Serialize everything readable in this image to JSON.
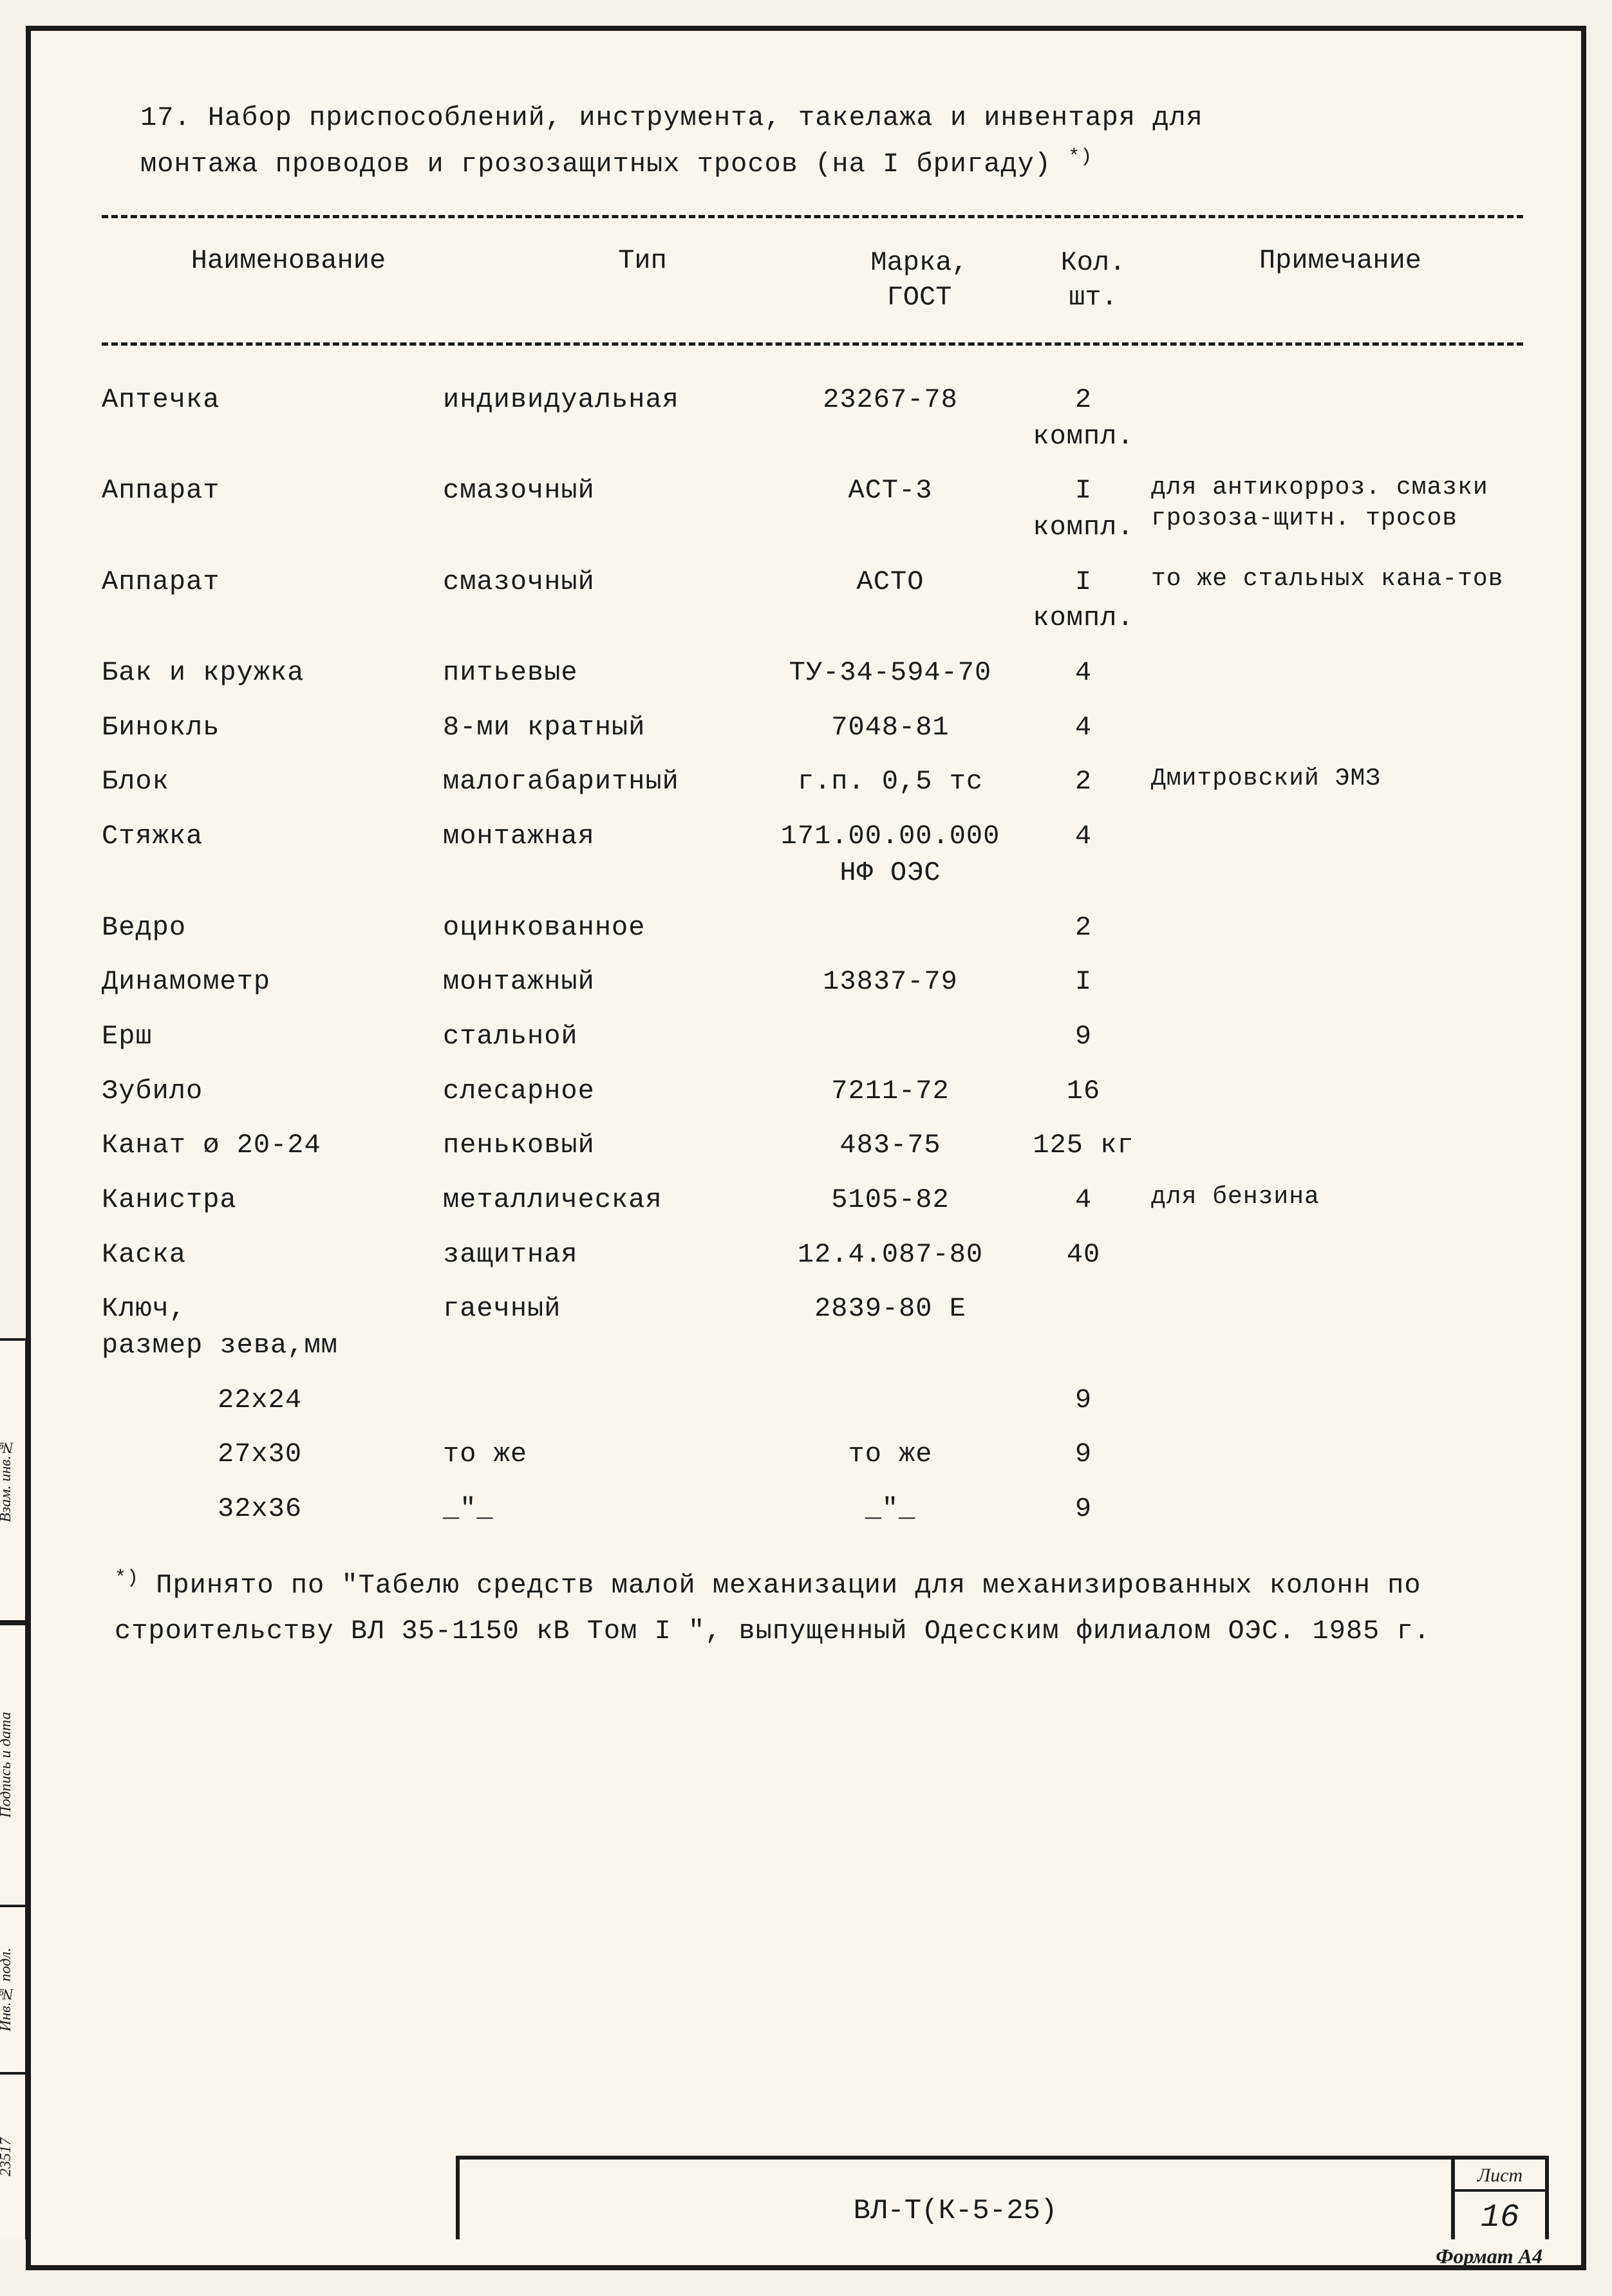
{
  "title": {
    "number": "17.",
    "text_line1": "Набор приспособлений, инструмента, такелажа и инвентаря для",
    "text_line2": "монтажа проводов и грозозащитных тросов (на I бригаду)",
    "footnote_mark": "*)"
  },
  "headers": {
    "name": "Наименование",
    "type": "Тип",
    "gost_l1": "Марка,",
    "gost_l2": "ГОСТ",
    "qty_l1": "Кол.",
    "qty_l2": "шт.",
    "note": "Примечание"
  },
  "rows": [
    {
      "name": "Аптечка",
      "type": "индивидуальная",
      "gost": "23267-78",
      "qty": "2\nкомпл.",
      "note": ""
    },
    {
      "name": "Аппарат",
      "type": "смазочный",
      "gost": "АСТ-3",
      "qty": "I\nкомпл.",
      "note": "для антикорроз. смазки грозоза-щитн. тросов"
    },
    {
      "name": "Аппарат",
      "type": "смазочный",
      "gost": "АСТО",
      "qty": "I\nкомпл.",
      "note": "то же стальных кана-тов"
    },
    {
      "name": "Бак и кружка",
      "type": "питьевые",
      "gost": "ТУ-34-594-70",
      "qty": "4",
      "note": ""
    },
    {
      "name": "Бинокль",
      "type": "8-ми кратный",
      "gost": "7048-81",
      "qty": "4",
      "note": ""
    },
    {
      "name": "Блок",
      "type": "малогабаритный",
      "gost": "г.п. 0,5 тс",
      "qty": "2",
      "note": "Дмитровский ЭМЗ"
    },
    {
      "name": "Стяжка",
      "type": "монтажная",
      "gost": "171.00.00.000\nНФ ОЭС",
      "qty": "4",
      "note": ""
    },
    {
      "name": "Ведро",
      "type": "оцинкованное",
      "gost": "",
      "qty": "2",
      "note": ""
    },
    {
      "name": "Динамометр",
      "type": "монтажный",
      "gost": "13837-79",
      "qty": "I",
      "note": ""
    },
    {
      "name": "Ерш",
      "type": "стальной",
      "gost": "",
      "qty": "9",
      "note": ""
    },
    {
      "name": "Зубило",
      "type": "слесарное",
      "gost": "7211-72",
      "qty": "16",
      "note": ""
    },
    {
      "name": "Канат ø 20-24",
      "type": "пеньковый",
      "gost": "483-75",
      "qty": "125 кг",
      "note": ""
    },
    {
      "name": "Канистра",
      "type": "металлическая",
      "gost": "5105-82",
      "qty": "4",
      "note": "для бензина"
    },
    {
      "name": "Каска",
      "type": "защитная",
      "gost": "12.4.087-80",
      "qty": "40",
      "note": ""
    },
    {
      "name": "Ключ,\n  размер зева,мм",
      "type": "гаечный",
      "gost": "2839-80 Е",
      "qty": "",
      "note": ""
    }
  ],
  "subrows": [
    {
      "name": "22х24",
      "type": "",
      "gost": "",
      "qty": "9",
      "note": ""
    },
    {
      "name": "27х30",
      "type": "то же",
      "gost": "то же",
      "qty": "9",
      "note": ""
    },
    {
      "name": "32х36",
      "type": "_\"_",
      "gost": "_\"_",
      "qty": "9",
      "note": ""
    }
  ],
  "footnote": {
    "mark": "*)",
    "text": "Принято по \"Табелю средств малой механизации для механизированных колонн по строительству ВЛ 35-1150 кВ Том I \", выпущенный Одесским филиалом ОЭС. 1985 г."
  },
  "footer": {
    "doc_code": "ВЛ-Т(К-5-25)",
    "page_label": "Лист",
    "page_num": "16"
  },
  "side": {
    "c1": "Взам. инв.№",
    "c2": "Подпись и дата",
    "c3": "Инв.№ подл.",
    "c3v": "23517"
  },
  "format_label": "Формат А4"
}
